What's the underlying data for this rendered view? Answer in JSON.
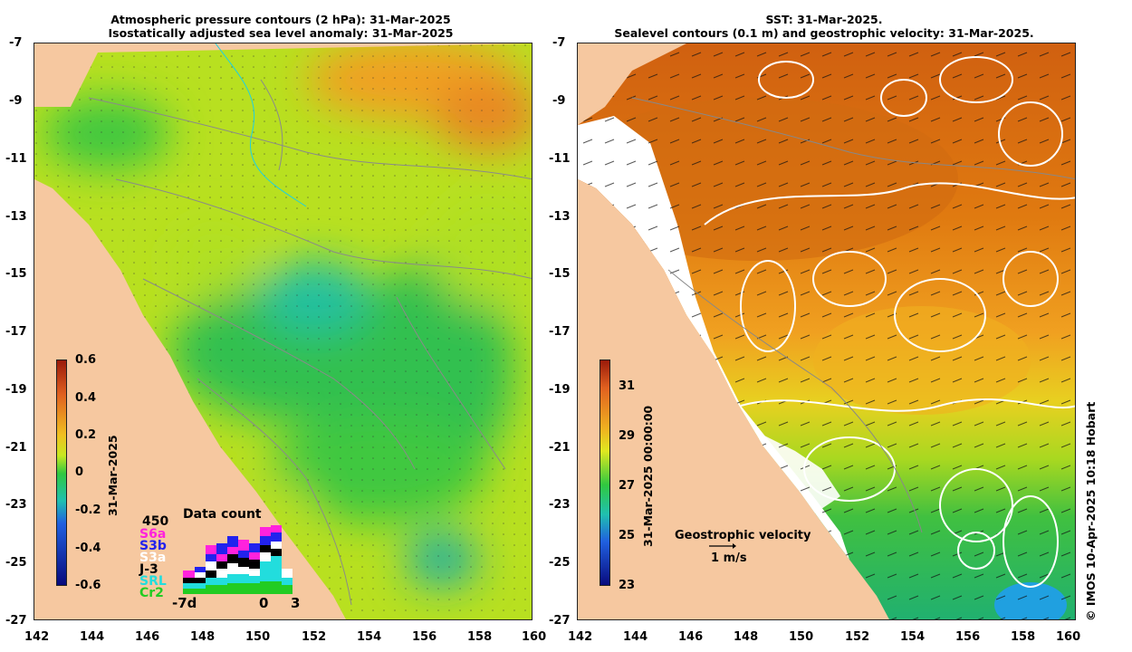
{
  "left_panel": {
    "title_line1": "Atmospheric pressure contours (2 hPa): 31-Mar-2025",
    "title_line2": "Isostatically adjusted sea level anomaly: 31-Mar-2025",
    "date_label": "31-Mar-2025",
    "colorbar_ticks": [
      "0.6",
      "0.4",
      "0.2",
      "0",
      "-0.2",
      "-0.4",
      "-0.6"
    ],
    "colorbar_range": [
      -0.6,
      0.6
    ],
    "inset": {
      "max_label": "450",
      "title": "Data count",
      "missions": [
        {
          "name": "S6a",
          "color": "#ff22dd"
        },
        {
          "name": "S3b",
          "color": "#2222ee"
        },
        {
          "name": "S3a",
          "color": "#ffffff"
        },
        {
          "name": "J-3",
          "color": "#000000"
        },
        {
          "name": "SRL",
          "color": "#22dddd"
        },
        {
          "name": "Cr2",
          "color": "#22cc22"
        }
      ],
      "x_labels": [
        "-7d",
        "0",
        "3"
      ]
    }
  },
  "right_panel": {
    "title_line1": "SST: 31-Mar-2025.",
    "title_line2": "Sealevel contours (0.1 m) and geostrophic velocity: 31-Mar-2025.",
    "date_label": "31-Mar-2025 00:00:00",
    "colorbar_ticks": [
      "31",
      "29",
      "27",
      "25",
      "23"
    ],
    "colorbar_range": [
      23,
      32
    ],
    "velocity_legend": "Geostrophic velocity",
    "velocity_scale": "1 m/s"
  },
  "map_axes": {
    "latitude_ticks": [
      "-7",
      "-9",
      "-11",
      "-13",
      "-15",
      "-17",
      "-19",
      "-21",
      "-23",
      "-25",
      "-27"
    ],
    "longitude_ticks": [
      "142",
      "144",
      "146",
      "148",
      "150",
      "152",
      "154",
      "156",
      "158",
      "160"
    ],
    "lon_range": [
      142,
      160
    ],
    "lat_range": [
      -27,
      -7
    ]
  },
  "credit": "© IMOS 10-Apr-2025 10:18 Hobart",
  "colors": {
    "land": "#f6c8a0",
    "anomaly_positive": "#f0a020",
    "anomaly_zero": "#30c840",
    "anomaly_negative": "#20b0c8",
    "sst_warm": "#d86a10",
    "sst_cool": "#30c050"
  }
}
